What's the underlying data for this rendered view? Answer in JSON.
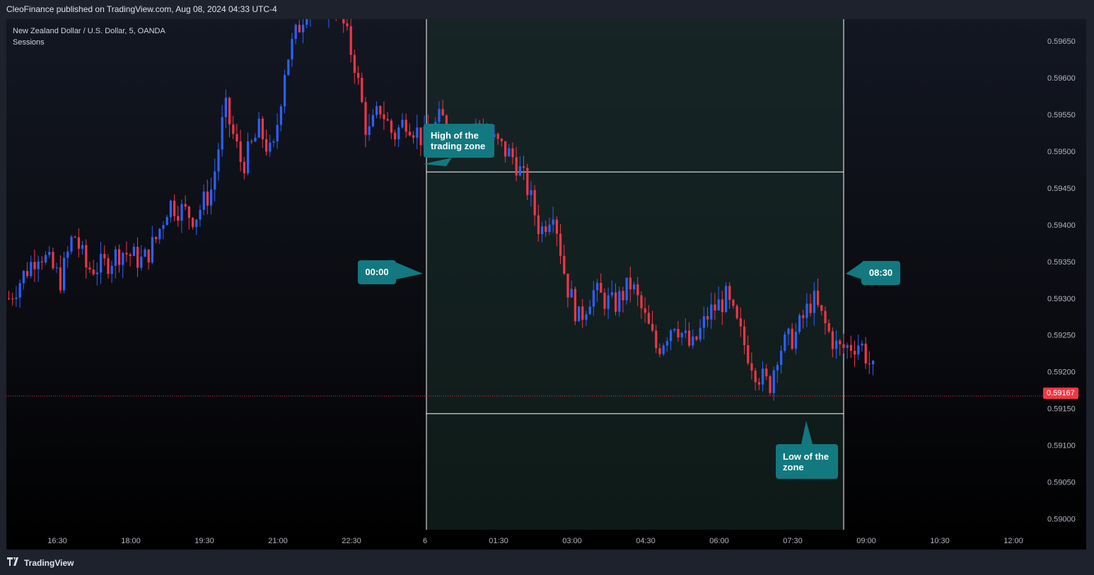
{
  "header": {
    "publisher_line": "CleoFinance published on TradingView.com, Aug 08, 2024 04:33 UTC-4"
  },
  "legend": {
    "symbol_line": "New Zealand Dollar / U.S. Dollar, 5, OANDA",
    "indicator": "Sessions"
  },
  "footer": {
    "brand": "TradingView",
    "logo_icon": "tradingview-logo-icon"
  },
  "colors": {
    "up": "#2962ff",
    "down": "#f23645",
    "callout": "#127980",
    "session_fill": "#1a2f2a",
    "last_price_line": "#f23645"
  },
  "annotations": {
    "high_label": [
      "High of the",
      "trading zone"
    ],
    "low_label": [
      "Low of the",
      "zone"
    ],
    "start_time": "00:00",
    "end_time": "08:30"
  },
  "last_price": "0.59167",
  "chart_data": {
    "type": "candlestick",
    "title": "",
    "symbol": "NZDUSD",
    "timeframe": "5",
    "broker": "OANDA",
    "x_tick_labels": [
      "16:30",
      "18:00",
      "19:30",
      "21:00",
      "22:30",
      "6",
      "01:30",
      "03:00",
      "04:30",
      "06:00",
      "07:30",
      "09:00",
      "10:30",
      "12:00"
    ],
    "y_tick_labels": [
      "0.59650",
      "0.59600",
      "0.59550",
      "0.59500",
      "0.59450",
      "0.59400",
      "0.59350",
      "0.59300",
      "0.59250",
      "0.59200",
      "0.59150",
      "0.59100",
      "0.59050",
      "0.59000"
    ],
    "ylim": [
      0.58985,
      0.5968
    ],
    "session_box": {
      "start": "00:00",
      "end": "08:30",
      "high": 0.59472,
      "low": 0.59143
    },
    "last_price": 0.59167,
    "price_path": [
      [
        0,
        0.593
      ],
      [
        0.035,
        0.59365
      ],
      [
        0.06,
        0.59325
      ],
      [
        0.075,
        0.5939
      ],
      [
        0.09,
        0.5934
      ],
      [
        0.11,
        0.59345
      ],
      [
        0.13,
        0.59365
      ],
      [
        0.155,
        0.5935
      ],
      [
        0.17,
        0.5938
      ],
      [
        0.185,
        0.5943
      ],
      [
        0.2,
        0.5942
      ],
      [
        0.215,
        0.5941
      ],
      [
        0.235,
        0.5945
      ],
      [
        0.25,
        0.5956
      ],
      [
        0.27,
        0.5948
      ],
      [
        0.29,
        0.5953
      ],
      [
        0.305,
        0.5949
      ],
      [
        0.32,
        0.5962
      ],
      [
        0.345,
        0.597
      ],
      [
        0.38,
        0.597
      ],
      [
        0.4,
        0.5962
      ],
      [
        0.415,
        0.5952
      ],
      [
        0.43,
        0.5956
      ],
      [
        0.445,
        0.5952
      ],
      [
        0.46,
        0.59545
      ],
      [
        0.48,
        0.59515
      ],
      [
        0.5,
        0.59545
      ],
      [
        0.52,
        0.5952
      ],
      [
        0.545,
        0.59535
      ],
      [
        0.565,
        0.5951
      ],
      [
        0.585,
        0.5949
      ],
      [
        0.6,
        0.5945
      ],
      [
        0.615,
        0.5939
      ],
      [
        0.63,
        0.59425
      ],
      [
        0.645,
        0.5932
      ],
      [
        0.66,
        0.5927
      ],
      [
        0.675,
        0.5931
      ],
      [
        0.7,
        0.5929
      ],
      [
        0.72,
        0.5932
      ],
      [
        0.74,
        0.5926
      ],
      [
        0.75,
        0.5923
      ],
      [
        0.77,
        0.5927
      ],
      [
        0.79,
        0.5923
      ],
      [
        0.81,
        0.5928
      ],
      [
        0.83,
        0.593
      ],
      [
        0.85,
        0.5924
      ],
      [
        0.865,
        0.592
      ],
      [
        0.88,
        0.5918
      ],
      [
        0.89,
        0.5923
      ],
      [
        0.91,
        0.5925
      ],
      [
        0.93,
        0.593
      ],
      [
        0.95,
        0.5925
      ],
      [
        0.96,
        0.5923
      ],
      [
        0.985,
        0.5924
      ],
      [
        1.0,
        0.592
      ]
    ]
  }
}
